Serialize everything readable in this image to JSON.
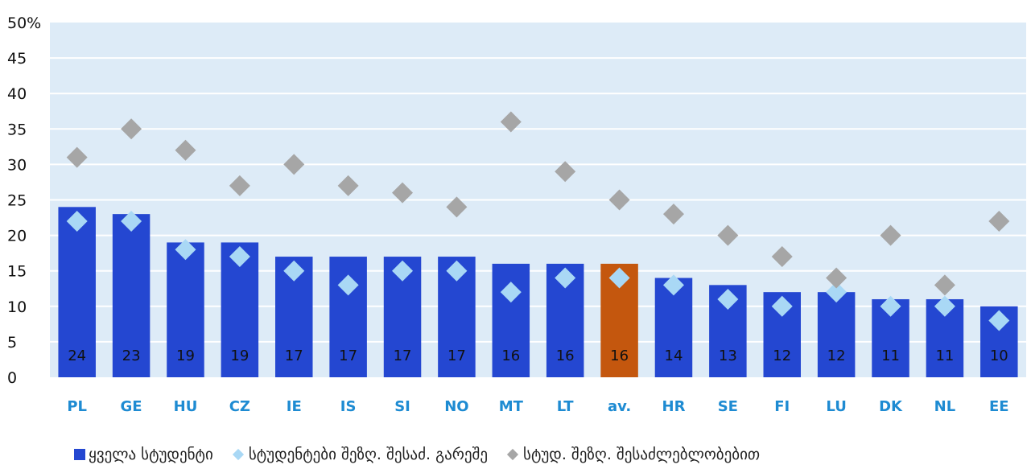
{
  "chart_data": {
    "type": "bar",
    "categories": [
      "PL",
      "GE",
      "HU",
      "CZ",
      "IE",
      "IS",
      "SI",
      "NO",
      "MT",
      "LT",
      "av.",
      "HR",
      "SE",
      "FI",
      "LU",
      "DK",
      "NL",
      "EE"
    ],
    "series": [
      {
        "name": "ყველა სტუდენტი",
        "type": "bar",
        "color": "#2447D1",
        "highlight_color": "#C4570E",
        "values": [
          24,
          23,
          19,
          19,
          17,
          17,
          17,
          17,
          16,
          16,
          16,
          14,
          13,
          12,
          12,
          11,
          11,
          10
        ]
      },
      {
        "name": "სტუდენტები შეზღ. შესაძ. გარეშე",
        "type": "scatter",
        "marker": "diamond",
        "color": "#A9D8F5",
        "values": [
          22,
          22,
          18,
          17,
          15,
          13,
          15,
          15,
          12,
          14,
          14,
          13,
          11,
          10,
          12,
          10,
          10,
          8
        ]
      },
      {
        "name": "სტუდ. შეზღ. შესაძლებლობებით",
        "type": "scatter",
        "marker": "diamond",
        "color": "#A6A6A6",
        "values": [
          31,
          35,
          32,
          27,
          30,
          27,
          26,
          24,
          36,
          29,
          25,
          23,
          20,
          17,
          14,
          20,
          13,
          22
        ]
      }
    ],
    "data_labels": [
      "24",
      "23",
      "19",
      "19",
      "17",
      "17",
      "17",
      "17",
      "16",
      "16",
      "16",
      "14",
      "13",
      "12",
      "12",
      "11",
      "11",
      "10"
    ],
    "ylim": [
      0,
      50
    ],
    "yticks": [
      0,
      5,
      10,
      15,
      20,
      25,
      30,
      35,
      40,
      45,
      50
    ],
    "y_top_label": "50%",
    "ytick_labels": [
      "0",
      "5",
      "10",
      "15",
      "20",
      "25",
      "30",
      "35",
      "40",
      "45",
      "50%"
    ],
    "highlight_category": "av.",
    "grid": true,
    "plot_background": "#DDEBF7",
    "xtick_color": "#1E8BD2",
    "legend_position": "bottom"
  }
}
